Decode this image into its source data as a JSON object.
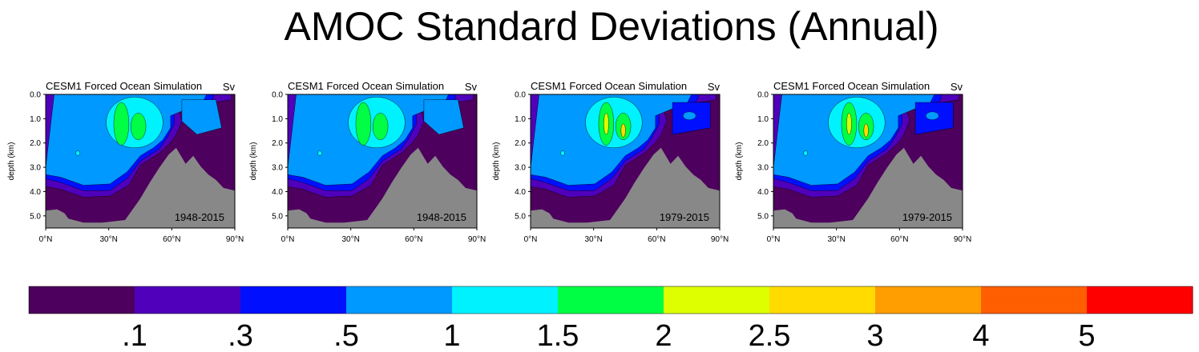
{
  "title": "AMOC Standard Deviations (Annual)",
  "chart_data": [
    {
      "type": "heatmap",
      "title": "CESM1 Forced Ocean Simulation",
      "units": "Sv",
      "period": "1948-2015",
      "ylabel": "depth (km)",
      "xticks": [
        "0°N",
        "30°N",
        "60°N",
        "90°N"
      ],
      "yticks": [
        "0.0",
        "1.0",
        "2.0",
        "3.0",
        "4.0",
        "5.0"
      ],
      "xlim": [
        0,
        90
      ],
      "ylim": [
        0,
        5.5
      ],
      "cores": [
        {
          "lat": 35,
          "depth": 1.5,
          "max_level": 2
        },
        {
          "lat": 43,
          "depth": 1.6,
          "max_level": 2
        }
      ]
    },
    {
      "type": "heatmap",
      "title": "CESM1 Forced Ocean Simulation",
      "units": "Sv",
      "period": "1948-2015",
      "ylabel": "depth (km)",
      "xticks": [
        "0°N",
        "30°N",
        "60°N",
        "90°N"
      ],
      "yticks": [
        "0.0",
        "1.0",
        "2.0",
        "3.0",
        "4.0",
        "5.0"
      ],
      "xlim": [
        0,
        90
      ],
      "ylim": [
        0,
        5.5
      ],
      "cores": [
        {
          "lat": 35,
          "depth": 1.5,
          "max_level": 2
        },
        {
          "lat": 43,
          "depth": 1.6,
          "max_level": 2
        }
      ]
    },
    {
      "type": "heatmap",
      "title": "CESM1 Forced Ocean Simulation",
      "units": "Sv",
      "period": "1979-2015",
      "ylabel": "depth (km)",
      "xticks": [
        "0°N",
        "30°N",
        "60°N",
        "90°N"
      ],
      "yticks": [
        "0.0",
        "1.0",
        "2.0",
        "3.0",
        "4.0",
        "5.0"
      ],
      "xlim": [
        0,
        90
      ],
      "ylim": [
        0,
        5.5
      ],
      "cores": [
        {
          "lat": 35,
          "depth": 1.4,
          "max_level": 3
        },
        {
          "lat": 42,
          "depth": 1.6,
          "max_level": 3
        }
      ]
    },
    {
      "type": "heatmap",
      "title": "CESM1 Forced Ocean Simulation",
      "units": "Sv",
      "period": "1979-2015",
      "ylabel": "depth (km)",
      "xticks": [
        "0°N",
        "30°N",
        "60°N",
        "90°N"
      ],
      "yticks": [
        "0.0",
        "1.0",
        "2.0",
        "3.0",
        "4.0",
        "5.0"
      ],
      "xlim": [
        0,
        90
      ],
      "ylim": [
        0,
        5.5
      ],
      "cores": [
        {
          "lat": 34,
          "depth": 1.4,
          "max_level": 3
        },
        {
          "lat": 42,
          "depth": 1.6,
          "max_level": 3
        }
      ]
    }
  ],
  "colorbar": {
    "colors": [
      "#4d005d",
      "#5000bb",
      "#0010ff",
      "#0099ff",
      "#00f2ff",
      "#00ff44",
      "#ddff00",
      "#ffdb00",
      "#ff9e00",
      "#ff5e00",
      "#ff0000"
    ],
    "labels": [
      ".1",
      ".3",
      ".5",
      "1",
      "1.5",
      "2",
      "2.5",
      "3",
      "4",
      "5"
    ]
  },
  "land_color": "#888888"
}
